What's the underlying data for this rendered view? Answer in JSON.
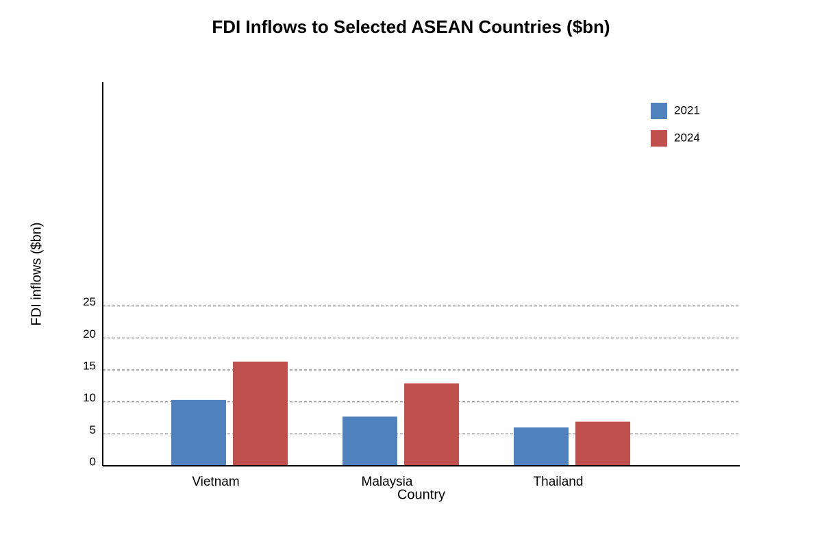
{
  "chart_data": {
    "type": "bar",
    "title": "FDI Inflows to Selected ASEAN Countries ($bn)",
    "x_label": "Country",
    "y_label": "FDI inflows ($bn)",
    "categories": [
      "Vietnam",
      "Malaysia",
      "Thailand"
    ],
    "series": [
      {
        "name": "2021",
        "color": "#4f81bd",
        "values": [
          10.3,
          7.7,
          6.0
        ]
      },
      {
        "name": "2024",
        "color": "#c0504d",
        "values": [
          16.3,
          12.9,
          6.9
        ]
      }
    ],
    "ylim": [
      0,
      60
    ],
    "yticks": [
      0,
      5,
      10,
      15,
      20,
      25
    ],
    "grid": true,
    "legend": "top-right"
  }
}
